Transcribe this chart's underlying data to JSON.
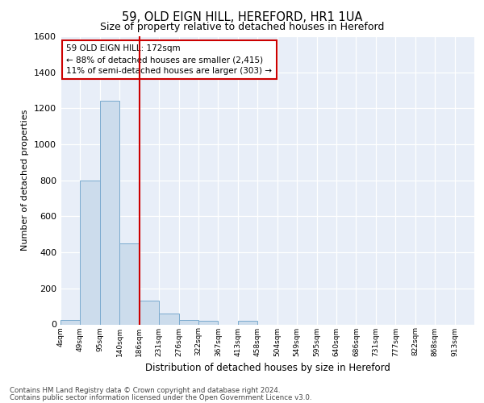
{
  "title1": "59, OLD EIGN HILL, HEREFORD, HR1 1UA",
  "title2": "Size of property relative to detached houses in Hereford",
  "xlabel": "Distribution of detached houses by size in Hereford",
  "ylabel": "Number of detached properties",
  "bin_labels": [
    "4sqm",
    "49sqm",
    "95sqm",
    "140sqm",
    "186sqm",
    "231sqm",
    "276sqm",
    "322sqm",
    "367sqm",
    "413sqm",
    "458sqm",
    "504sqm",
    "549sqm",
    "595sqm",
    "640sqm",
    "686sqm",
    "731sqm",
    "777sqm",
    "822sqm",
    "868sqm",
    "913sqm"
  ],
  "bar_heights": [
    25,
    800,
    1240,
    450,
    130,
    62,
    25,
    18,
    0,
    18,
    0,
    0,
    0,
    0,
    0,
    0,
    0,
    0,
    0,
    0,
    0
  ],
  "bar_color": "#ccdcec",
  "bar_edge_color": "#7aaace",
  "vline_x": 4,
  "vline_color": "#cc0000",
  "annotation_text": "59 OLD EIGN HILL: 172sqm\n← 88% of detached houses are smaller (2,415)\n11% of semi-detached houses are larger (303) →",
  "annotation_box_color": "#ffffff",
  "annotation_box_edge": "#cc0000",
  "ylim": [
    0,
    1600
  ],
  "yticks": [
    0,
    200,
    400,
    600,
    800,
    1000,
    1200,
    1400,
    1600
  ],
  "footer1": "Contains HM Land Registry data © Crown copyright and database right 2024.",
  "footer2": "Contains public sector information licensed under the Open Government Licence v3.0.",
  "plot_bg_color": "#e8eef8"
}
